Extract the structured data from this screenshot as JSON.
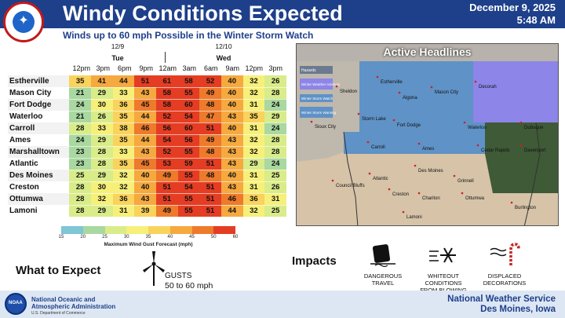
{
  "header": {
    "title": "Windy Conditions Expected",
    "date": "December 9, 2025",
    "time": "5:48 AM",
    "subtitle": "Winds up to 60 mph Possible in the Winter Storm Watch"
  },
  "forecast": {
    "day1_date": "12/9",
    "day1_name": "Tue",
    "day2_date": "12/10",
    "day2_name": "Wed",
    "hours": [
      "12pm",
      "3pm",
      "6pm",
      "9pm",
      "12am",
      "3am",
      "6am",
      "9am",
      "12pm",
      "3pm"
    ],
    "rows": [
      {
        "city": "Estherville",
        "values": [
          35,
          41,
          44,
          51,
          61,
          58,
          52,
          40,
          32,
          26
        ]
      },
      {
        "city": "Mason City",
        "values": [
          21,
          29,
          33,
          43,
          58,
          55,
          49,
          40,
          32,
          28
        ]
      },
      {
        "city": "Fort Dodge",
        "values": [
          24,
          30,
          36,
          45,
          58,
          60,
          48,
          40,
          31,
          24
        ]
      },
      {
        "city": "Waterloo",
        "values": [
          21,
          26,
          35,
          44,
          52,
          54,
          47,
          43,
          35,
          29
        ]
      },
      {
        "city": "Carroll",
        "values": [
          28,
          33,
          38,
          46,
          56,
          60,
          51,
          40,
          31,
          24
        ]
      },
      {
        "city": "Ames",
        "values": [
          24,
          29,
          35,
          44,
          54,
          56,
          49,
          43,
          32,
          28
        ]
      },
      {
        "city": "Marshalltown",
        "values": [
          23,
          28,
          33,
          43,
          52,
          55,
          48,
          43,
          32,
          28
        ]
      },
      {
        "city": "Atlantic",
        "values": [
          23,
          28,
          35,
          45,
          53,
          59,
          51,
          43,
          29,
          24
        ]
      },
      {
        "city": "Des Moines",
        "values": [
          25,
          29,
          32,
          40,
          49,
          55,
          48,
          40,
          31,
          25
        ]
      },
      {
        "city": "Creston",
        "values": [
          28,
          30,
          32,
          40,
          51,
          54,
          51,
          43,
          31,
          26
        ]
      },
      {
        "city": "Ottumwa",
        "values": [
          28,
          32,
          36,
          43,
          51,
          55,
          51,
          46,
          36,
          31
        ]
      },
      {
        "city": "Lamoni",
        "values": [
          28,
          29,
          31,
          39,
          49,
          55,
          51,
          44,
          32,
          25
        ]
      }
    ]
  },
  "legend": {
    "ticks": [
      "15",
      "20",
      "25",
      "30",
      "35",
      "40",
      "45",
      "50",
      "60"
    ],
    "colors": [
      "#7fc6d6",
      "#a9d8a0",
      "#d9ec8a",
      "#f6f07a",
      "#f9d35c",
      "#f5a93f",
      "#ee7a2b",
      "#e43d23"
    ],
    "title": "Maximum Wind Gust Forecast (mph)"
  },
  "map": {
    "title": "Active Headlines",
    "legend_items": [
      "Hazards",
      "Winter Weather Advisory",
      "Winter Storm Watch",
      "Winter Storm Warning"
    ],
    "cities": [
      "Estherville",
      "Mason City",
      "Decorah",
      "Sheldon",
      "Algona",
      "Sioux City",
      "Storm Lake",
      "Fort Dodge",
      "Waterloo",
      "Dubuque",
      "Carroll",
      "Ames",
      "Cedar Rapids",
      "Davenport",
      "Des Moines",
      "Grinnell",
      "Council Bluffs",
      "Atlantic",
      "Creston",
      "Chariton",
      "Ottumwa",
      "Burlington",
      "Lamoni"
    ]
  },
  "expect": {
    "label": "What to Expect",
    "gusts_label": "GUSTS",
    "gusts_value": "50 to 60 mph"
  },
  "impacts": {
    "label": "Impacts",
    "items": [
      "DANGEROUS TRAVEL",
      "WHITEOUT CONDITIONS FROM BLOWING SNOW",
      "DISPLACED DECORATIONS"
    ]
  },
  "footer": {
    "noaa_line1": "National Oceanic and",
    "noaa_line2": "Atmospheric Administration",
    "noaa_sub": "U.S. Department of Commerce",
    "noaa_logo_text": "NOAA",
    "nws_line1": "National Weather Service",
    "nws_line2": "Des Moines, Iowa"
  }
}
